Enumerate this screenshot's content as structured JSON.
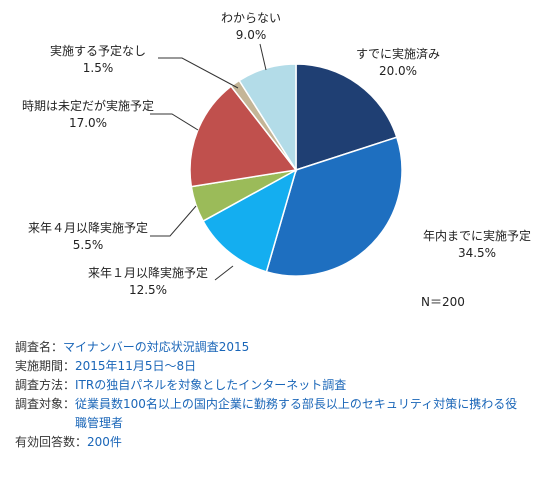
{
  "chart_data": {
    "type": "pie",
    "start_angle_deg": 0,
    "direction": "clockwise",
    "slices": [
      {
        "label": "すでに実施済み",
        "value": 20.0,
        "value_label": "20.0%",
        "color": "#1f3f73"
      },
      {
        "label": "年内までに実施予定",
        "value": 34.5,
        "value_label": "34.5%",
        "color": "#1e6fc0"
      },
      {
        "label": "来年１月以降実施予定",
        "value": 12.5,
        "value_label": "12.5%",
        "color": "#14aef0"
      },
      {
        "label": "来年４月以降実施予定",
        "value": 5.5,
        "value_label": "5.5%",
        "color": "#9bbb59"
      },
      {
        "label": "時期は未定だが実施予定",
        "value": 17.0,
        "value_label": "17.0%",
        "color": "#c0504d"
      },
      {
        "label": "実施する予定なし",
        "value": 1.5,
        "value_label": "1.5%",
        "color": "#c4b597"
      },
      {
        "label": "わからない",
        "value": 9.0,
        "value_label": "9.0%",
        "color": "#b3dce8"
      }
    ]
  },
  "n_label": "N＝200",
  "meta": [
    {
      "key": "調査名：",
      "value": "マイナンバーの対応状況調査2015"
    },
    {
      "key": "実施期間：",
      "value": "2015年11月5日〜8日"
    },
    {
      "key": "調査方法：",
      "value": "ITRの独自パネルを対象としたインターネット調査"
    },
    {
      "key": "調査対象：",
      "value": "従業員数100名以上の国内企業に勤務する部長以上のセキュリティ対策に携わる役職管理者"
    },
    {
      "key": "有効回答数：",
      "value": "200件"
    }
  ]
}
